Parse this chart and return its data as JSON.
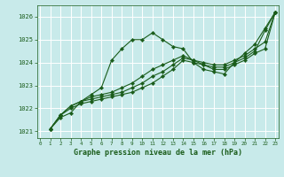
{
  "background_color": "#c8eaea",
  "grid_color": "#aad4d4",
  "line_color": "#1a5c1a",
  "title": "Graphe pression niveau de la mer (hPa)",
  "xlim": [
    -0.3,
    23.3
  ],
  "ylim": [
    1020.7,
    1026.5
  ],
  "yticks": [
    1021,
    1022,
    1023,
    1024,
    1025,
    1026
  ],
  "xticks": [
    0,
    1,
    2,
    3,
    4,
    5,
    6,
    7,
    8,
    9,
    10,
    11,
    12,
    13,
    14,
    15,
    16,
    17,
    18,
    19,
    20,
    21,
    22,
    23
  ],
  "series": [
    {
      "x": [
        1,
        2,
        3,
        4,
        5,
        6,
        7,
        8,
        9,
        10,
        11,
        12,
        13,
        14,
        15,
        16,
        17,
        18,
        19,
        20,
        21,
        22,
        23
      ],
      "y": [
        1021.1,
        1021.6,
        1021.8,
        1022.3,
        1022.6,
        1022.9,
        1024.1,
        1024.6,
        1025.0,
        1025.0,
        1025.3,
        1025.0,
        1024.7,
        1024.6,
        1024.0,
        1023.7,
        1023.6,
        1023.5,
        1024.0,
        1024.4,
        1024.8,
        1025.5,
        1026.2
      ]
    },
    {
      "x": [
        1,
        2,
        3,
        4,
        5,
        6,
        7,
        8,
        9,
        10,
        11,
        12,
        13,
        14,
        15,
        16,
        17,
        18,
        19,
        20,
        21,
        22,
        23
      ],
      "y": [
        1021.1,
        1021.7,
        1022.0,
        1022.2,
        1022.3,
        1022.4,
        1022.5,
        1022.6,
        1022.7,
        1022.9,
        1023.1,
        1023.4,
        1023.7,
        1024.1,
        1024.0,
        1023.9,
        1023.7,
        1023.7,
        1023.9,
        1024.1,
        1024.4,
        1024.6,
        1026.2
      ]
    },
    {
      "x": [
        1,
        2,
        3,
        4,
        5,
        6,
        7,
        8,
        9,
        10,
        11,
        12,
        13,
        14,
        15,
        16,
        17,
        18,
        19,
        20,
        21,
        22,
        23
      ],
      "y": [
        1021.1,
        1021.7,
        1022.1,
        1022.3,
        1022.4,
        1022.5,
        1022.6,
        1022.7,
        1022.9,
        1023.1,
        1023.4,
        1023.6,
        1023.9,
        1024.2,
        1024.1,
        1023.9,
        1023.8,
        1023.8,
        1024.0,
        1024.2,
        1024.5,
        1025.4,
        1026.2
      ]
    },
    {
      "x": [
        1,
        2,
        3,
        4,
        5,
        6,
        7,
        8,
        9,
        10,
        11,
        12,
        13,
        14,
        15,
        16,
        17,
        18,
        19,
        20,
        21,
        22,
        23
      ],
      "y": [
        1021.1,
        1021.7,
        1022.1,
        1022.3,
        1022.5,
        1022.6,
        1022.7,
        1022.9,
        1023.1,
        1023.4,
        1023.7,
        1023.9,
        1024.1,
        1024.3,
        1024.1,
        1024.0,
        1023.9,
        1023.9,
        1024.1,
        1024.3,
        1024.6,
        1024.9,
        1026.2
      ]
    }
  ]
}
